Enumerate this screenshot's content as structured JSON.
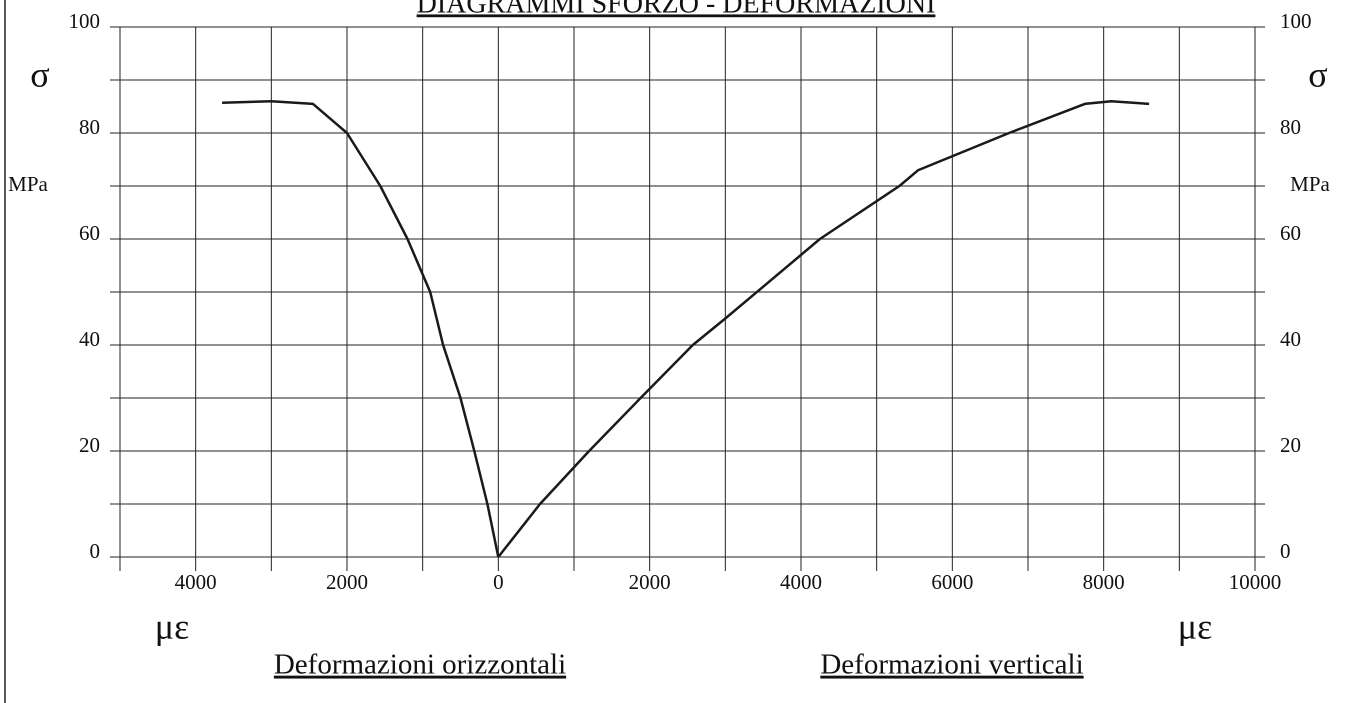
{
  "chart_data": {
    "type": "line",
    "title": "DIAGRAMMI SFORZO - DEFORMAZIONI",
    "ylabel": "σ",
    "yunit": "MPa",
    "xlabel": "με",
    "sublabels": [
      "Deformazioni orizzontali",
      "Deformazioni verticali"
    ],
    "xlim": [
      -5000,
      10000
    ],
    "xticks": [
      {
        "value": -4000,
        "label": "4000"
      },
      {
        "value": -2000,
        "label": "2000"
      },
      0,
      2000,
      4000,
      6000,
      8000,
      10000
    ],
    "xgrid": [
      -5000,
      -4000,
      -3000,
      -2000,
      -1000,
      0,
      1000,
      2000,
      3000,
      4000,
      5000,
      6000,
      7000,
      8000,
      9000,
      10000
    ],
    "ylim": [
      0,
      100
    ],
    "yticks": [
      0,
      20,
      40,
      60,
      80,
      100
    ],
    "ygrid": [
      0,
      10,
      20,
      30,
      40,
      50,
      60,
      70,
      80,
      90,
      100
    ],
    "grid": true,
    "series": [
      {
        "color": "#1a1a1a",
        "x": [
          0,
          -145,
          -317,
          -500,
          -730,
          -900,
          -1200,
          -1560,
          -2000,
          -2450,
          -3000,
          -3650
        ],
        "values": [
          0,
          10,
          20,
          30,
          40,
          50,
          60,
          70,
          80,
          85.5,
          86,
          85.7
        ]
      },
      {
        "color": "#1a1a1a",
        "x": [
          0,
          550,
          1200,
          1880,
          2570,
          3000,
          3500,
          4250,
          5300,
          5550,
          6750,
          7750,
          8100,
          8600
        ],
        "values": [
          0,
          10,
          20,
          30,
          40,
          45,
          51,
          60,
          70,
          73,
          80,
          85.5,
          86,
          85.5
        ]
      }
    ]
  }
}
